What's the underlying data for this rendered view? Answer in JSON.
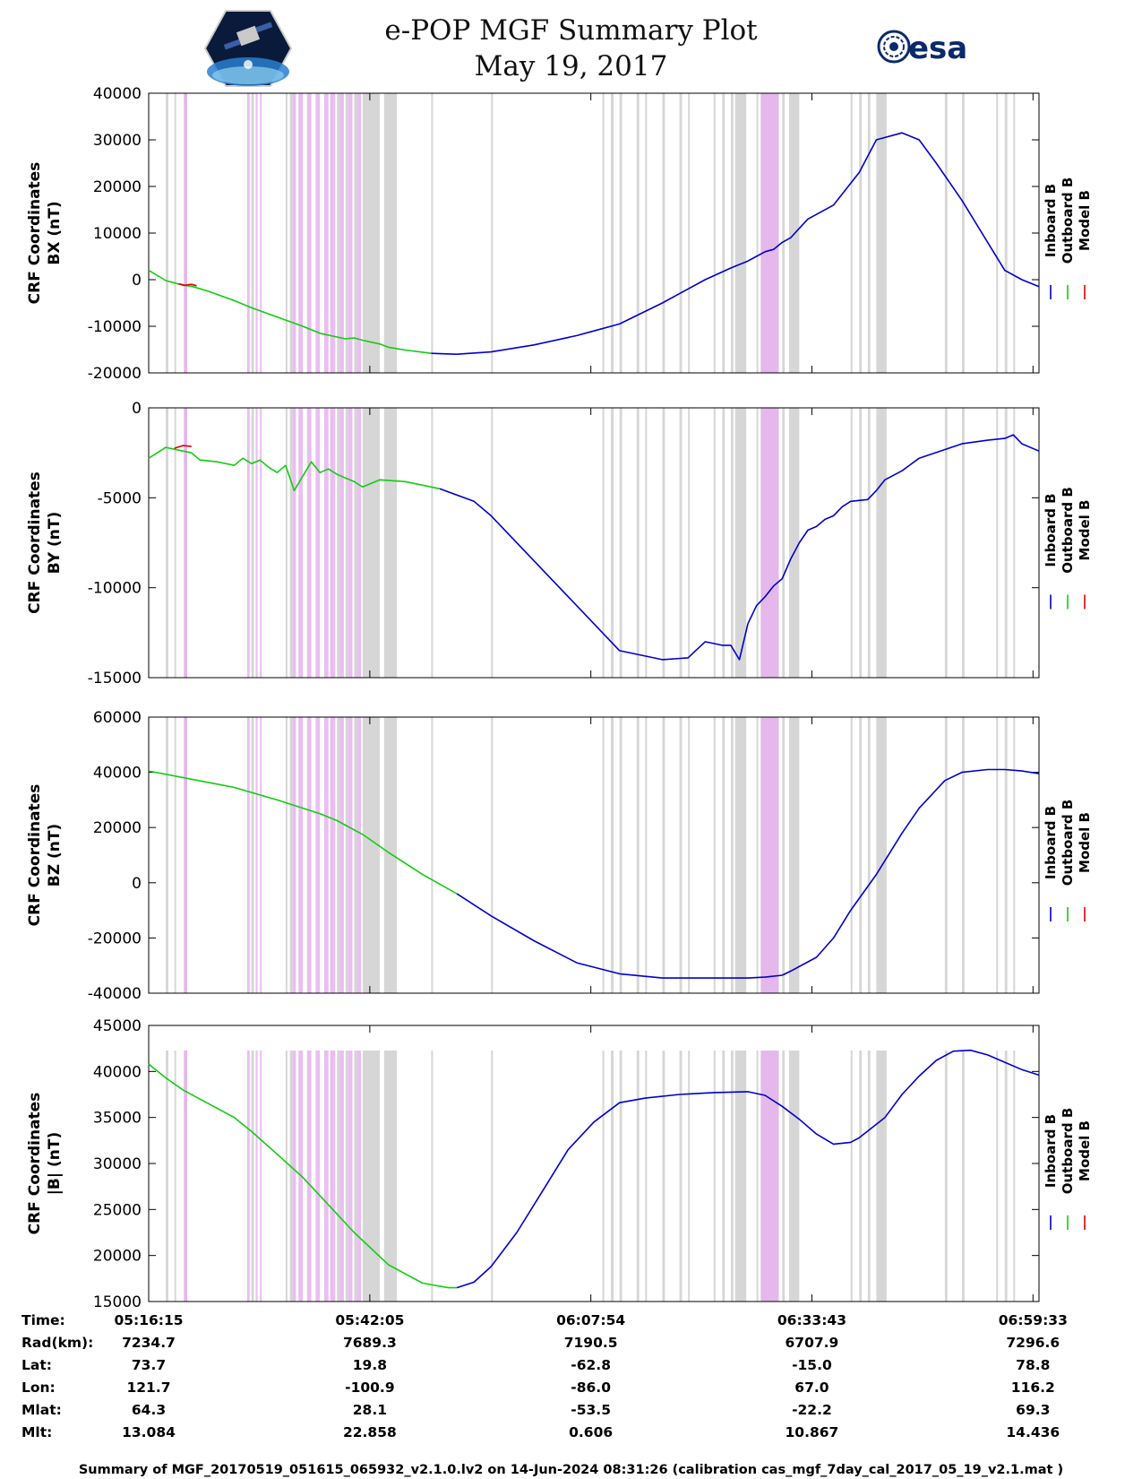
{
  "header": {
    "title": "e-POP MGF Summary Plot",
    "date": "May 19, 2017",
    "left_logo": "cassiope-satellite-logo",
    "right_logo": "esa-logo",
    "right_logo_text": "esa"
  },
  "colors": {
    "inboard": "#0000cc",
    "outboard": "#11cc11",
    "model": "#dd0000",
    "gray_band": "#d6d6d6",
    "pink_band": "#e6b3ee"
  },
  "legend": [
    "Inboard B",
    "Outboard B",
    "Model B"
  ],
  "chart_data": [
    {
      "type": "line",
      "ylabel": [
        "CRF Coordinates",
        "BX (nT)"
      ],
      "ylim": [
        -20000,
        40000
      ],
      "yticks": [
        40000,
        30000,
        20000,
        10000,
        0,
        -10000,
        -20000
      ],
      "xlim_min": [
        0,
        104
      ],
      "series": [
        {
          "name": "Outboard B",
          "color": "#11cc11",
          "x": [
            0,
            2,
            4,
            5,
            7,
            10,
            12,
            15,
            18,
            20,
            22,
            23,
            24,
            25,
            27,
            28,
            30,
            33
          ],
          "y": [
            2000,
            -200,
            -1200,
            -1400,
            -2500,
            -4500,
            -6000,
            -8000,
            -10000,
            -11500,
            -12300,
            -12700,
            -12500,
            -13000,
            -13800,
            -14500,
            -15100,
            -15800
          ]
        },
        {
          "name": "Inboard B",
          "color": "#0000cc",
          "x": [
            33,
            36,
            40,
            45,
            50,
            52,
            55,
            60,
            62,
            65,
            68,
            70,
            71,
            72,
            73,
            74,
            75,
            77,
            80,
            83,
            85,
            88,
            90,
            92,
            95,
            98,
            100,
            102,
            104
          ],
          "y": [
            -15800,
            -16000,
            -15500,
            -14000,
            -12000,
            -11000,
            -9500,
            -5000,
            -3000,
            0,
            2500,
            4000,
            5000,
            6000,
            6500,
            8000,
            9000,
            13000,
            16000,
            23000,
            30000,
            31500,
            30000,
            25000,
            17000,
            8000,
            2000,
            0,
            -1500
          ]
        },
        {
          "name": "Model B",
          "color": "#dd0000",
          "x": [
            3.5,
            4.2,
            5,
            5.6
          ],
          "y": [
            -900,
            -1200,
            -1000,
            -1300
          ]
        }
      ]
    },
    {
      "type": "line",
      "ylabel": [
        "CRF Coordinates",
        "BY (nT)"
      ],
      "ylim": [
        -15000,
        0
      ],
      "yticks": [
        0,
        -5000,
        -10000,
        -15000
      ],
      "xlim_min": [
        0,
        104
      ],
      "series": [
        {
          "name": "Outboard B",
          "color": "#11cc11",
          "x": [
            0,
            2,
            4,
            5,
            6,
            8,
            10,
            11,
            12,
            13,
            14,
            15,
            16,
            17,
            18,
            19,
            20,
            21,
            22,
            23,
            24,
            25,
            27,
            30,
            34
          ],
          "y": [
            -2800,
            -2200,
            -2400,
            -2500,
            -2900,
            -3000,
            -3200,
            -2800,
            -3100,
            -2900,
            -3300,
            -3600,
            -3200,
            -4600,
            -3800,
            -3000,
            -3600,
            -3400,
            -3700,
            -3900,
            -4100,
            -4400,
            -4000,
            -4100,
            -4500
          ]
        },
        {
          "name": "Inboard B",
          "color": "#0000cc",
          "x": [
            34,
            38,
            40,
            45,
            50,
            55,
            60,
            63,
            65,
            67,
            68,
            69,
            70,
            71,
            72,
            72.5,
            73,
            74,
            75,
            76,
            77,
            78,
            79,
            80,
            81,
            82,
            84,
            85,
            86,
            88,
            90,
            95,
            98,
            100,
            101,
            102,
            104
          ],
          "y": [
            -4500,
            -5200,
            -6000,
            -8500,
            -11000,
            -13500,
            -14000,
            -13900,
            -13000,
            -13200,
            -13200,
            -14000,
            -12000,
            -11000,
            -10500,
            -10200,
            -9900,
            -9500,
            -8400,
            -7500,
            -6800,
            -6600,
            -6200,
            -6000,
            -5500,
            -5200,
            -5100,
            -4600,
            -4000,
            -3500,
            -2800,
            -2000,
            -1800,
            -1700,
            -1500,
            -2000,
            -2400
          ]
        },
        {
          "name": "Model B",
          "color": "#dd0000",
          "x": [
            3,
            4,
            5
          ],
          "y": [
            -2250,
            -2100,
            -2150
          ]
        }
      ]
    },
    {
      "type": "line",
      "ylabel": [
        "CRF Coordinates",
        "BZ (nT)"
      ],
      "ylim": [
        -40000,
        60000
      ],
      "yticks": [
        60000,
        40000,
        20000,
        0,
        -20000,
        -40000
      ],
      "xlim_min": [
        0,
        104
      ],
      "series": [
        {
          "name": "Outboard B",
          "color": "#11cc11",
          "x": [
            0,
            5,
            10,
            15,
            20,
            22,
            25,
            28,
            32,
            36
          ],
          "y": [
            40500,
            37500,
            34500,
            30000,
            25000,
            22500,
            17500,
            11000,
            3000,
            -4000
          ]
        },
        {
          "name": "Inboard B",
          "color": "#0000cc",
          "x": [
            36,
            40,
            45,
            50,
            55,
            60,
            65,
            70,
            72,
            74,
            75,
            78,
            80,
            82,
            85,
            88,
            90,
            93,
            95,
            98,
            100,
            102,
            104
          ],
          "y": [
            -4000,
            -12000,
            -21000,
            -29000,
            -33000,
            -34500,
            -34500,
            -34500,
            -34200,
            -33500,
            -32000,
            -27000,
            -20000,
            -10000,
            3000,
            18000,
            27000,
            37000,
            40000,
            41000,
            41000,
            40500,
            39500
          ]
        }
      ]
    },
    {
      "type": "line",
      "ylabel": [
        "CRF Coordinates",
        "|B| (nT)"
      ],
      "ylim": [
        15000,
        45000
      ],
      "yticks": [
        45000,
        40000,
        35000,
        30000,
        25000,
        20000,
        15000
      ],
      "xlim_min": [
        0,
        104
      ],
      "series": [
        {
          "name": "Outboard B",
          "color": "#11cc11",
          "x": [
            0,
            2,
            4,
            7,
            10,
            12,
            15,
            18,
            20,
            24,
            28,
            32,
            35,
            36
          ],
          "y": [
            40800,
            39300,
            38000,
            36500,
            35000,
            33500,
            31000,
            28500,
            26500,
            22500,
            19000,
            17000,
            16500,
            16500
          ]
        },
        {
          "name": "Inboard B",
          "color": "#0000cc",
          "x": [
            36,
            38,
            40,
            43,
            46,
            49,
            52,
            55,
            58,
            62,
            66,
            70,
            72,
            74,
            76,
            78,
            80,
            82,
            83,
            86,
            88,
            90,
            92,
            94,
            96,
            98,
            100,
            102,
            104
          ],
          "y": [
            16500,
            17100,
            18800,
            22500,
            27000,
            31500,
            34500,
            36600,
            37100,
            37500,
            37700,
            37800,
            37400,
            36200,
            34800,
            33200,
            32100,
            32300,
            32800,
            35000,
            37500,
            39500,
            41200,
            42200,
            42300,
            41800,
            41000,
            40200,
            39600
          ]
        }
      ]
    }
  ],
  "x_axis": {
    "tick_minutes": [
      0,
      25.83,
      51.65,
      77.47,
      103.3
    ],
    "row_labels": [
      "Time:",
      "Rad(km):",
      "Lat:",
      "Lon:",
      "Mlat:",
      "Mlt:"
    ],
    "rows": [
      [
        "05:16:15",
        "05:42:05",
        "06:07:54",
        "06:33:43",
        "06:59:33"
      ],
      [
        "7234.7",
        "7689.3",
        "7190.5",
        "6707.9",
        "7296.6"
      ],
      [
        "73.7",
        "19.8",
        "-62.8",
        "-15.0",
        "78.8"
      ],
      [
        "121.7",
        "-100.9",
        "-86.0",
        "67.0",
        "116.2"
      ],
      [
        "64.3",
        "28.1",
        "-53.5",
        "-22.2",
        "69.3"
      ],
      [
        "13.084",
        "22.858",
        "0.606",
        "10.867",
        "14.436"
      ]
    ]
  },
  "flag_bands": {
    "gray": [
      [
        2,
        2.3
      ],
      [
        3,
        3.2
      ],
      [
        4.2,
        4.5
      ],
      [
        12,
        12.3
      ],
      [
        16,
        16.2
      ],
      [
        16.5,
        16.8
      ],
      [
        22,
        22.3
      ],
      [
        23,
        23.3
      ],
      [
        24,
        24.3
      ],
      [
        25,
        27
      ],
      [
        27.5,
        29
      ],
      [
        33,
        33.2
      ],
      [
        40,
        40.2
      ],
      [
        53,
        53.2
      ],
      [
        54,
        54.3
      ],
      [
        55,
        55.3
      ],
      [
        57,
        57.3
      ],
      [
        58,
        58.2
      ],
      [
        60,
        60.3
      ],
      [
        62,
        62.3
      ],
      [
        63,
        63.2
      ],
      [
        66,
        66.2
      ],
      [
        67,
        67.3
      ],
      [
        68,
        68.3
      ],
      [
        69,
        69.3
      ],
      [
        71,
        71.2
      ],
      [
        72,
        72.2
      ],
      [
        74,
        74.3
      ],
      [
        75,
        75.2
      ],
      [
        82,
        82.2
      ],
      [
        83,
        83.3
      ],
      [
        84,
        84.3
      ],
      [
        85,
        86.2
      ],
      [
        93,
        93.3
      ],
      [
        95,
        95.3
      ],
      [
        99,
        99.2
      ],
      [
        100,
        100.3
      ],
      [
        101,
        101.2
      ]
    ],
    "gray_wide": [
      [
        68.5,
        69.8
      ],
      [
        71.5,
        73.6
      ],
      [
        74.8,
        76
      ]
    ],
    "pink": [
      [
        4.1,
        4.5
      ],
      [
        11.5,
        11.8
      ],
      [
        12.5,
        12.7
      ],
      [
        13,
        13.2
      ],
      [
        16.8,
        17.2
      ],
      [
        17.5,
        18
      ],
      [
        18.5,
        19
      ],
      [
        19.5,
        20
      ],
      [
        20.5,
        21
      ],
      [
        21.2,
        21.8
      ],
      [
        22.3,
        22.8
      ],
      [
        23.3,
        23.8
      ],
      [
        24.3,
        24.8
      ],
      [
        71.5,
        73.6
      ]
    ]
  },
  "footer": "Summary of MGF_20170519_051615_065932_v2.1.0.lv2 on 14-Jun-2024 08:31:26 (calibration cas_mgf_7day_cal_2017_05_19_v2.1.mat )"
}
